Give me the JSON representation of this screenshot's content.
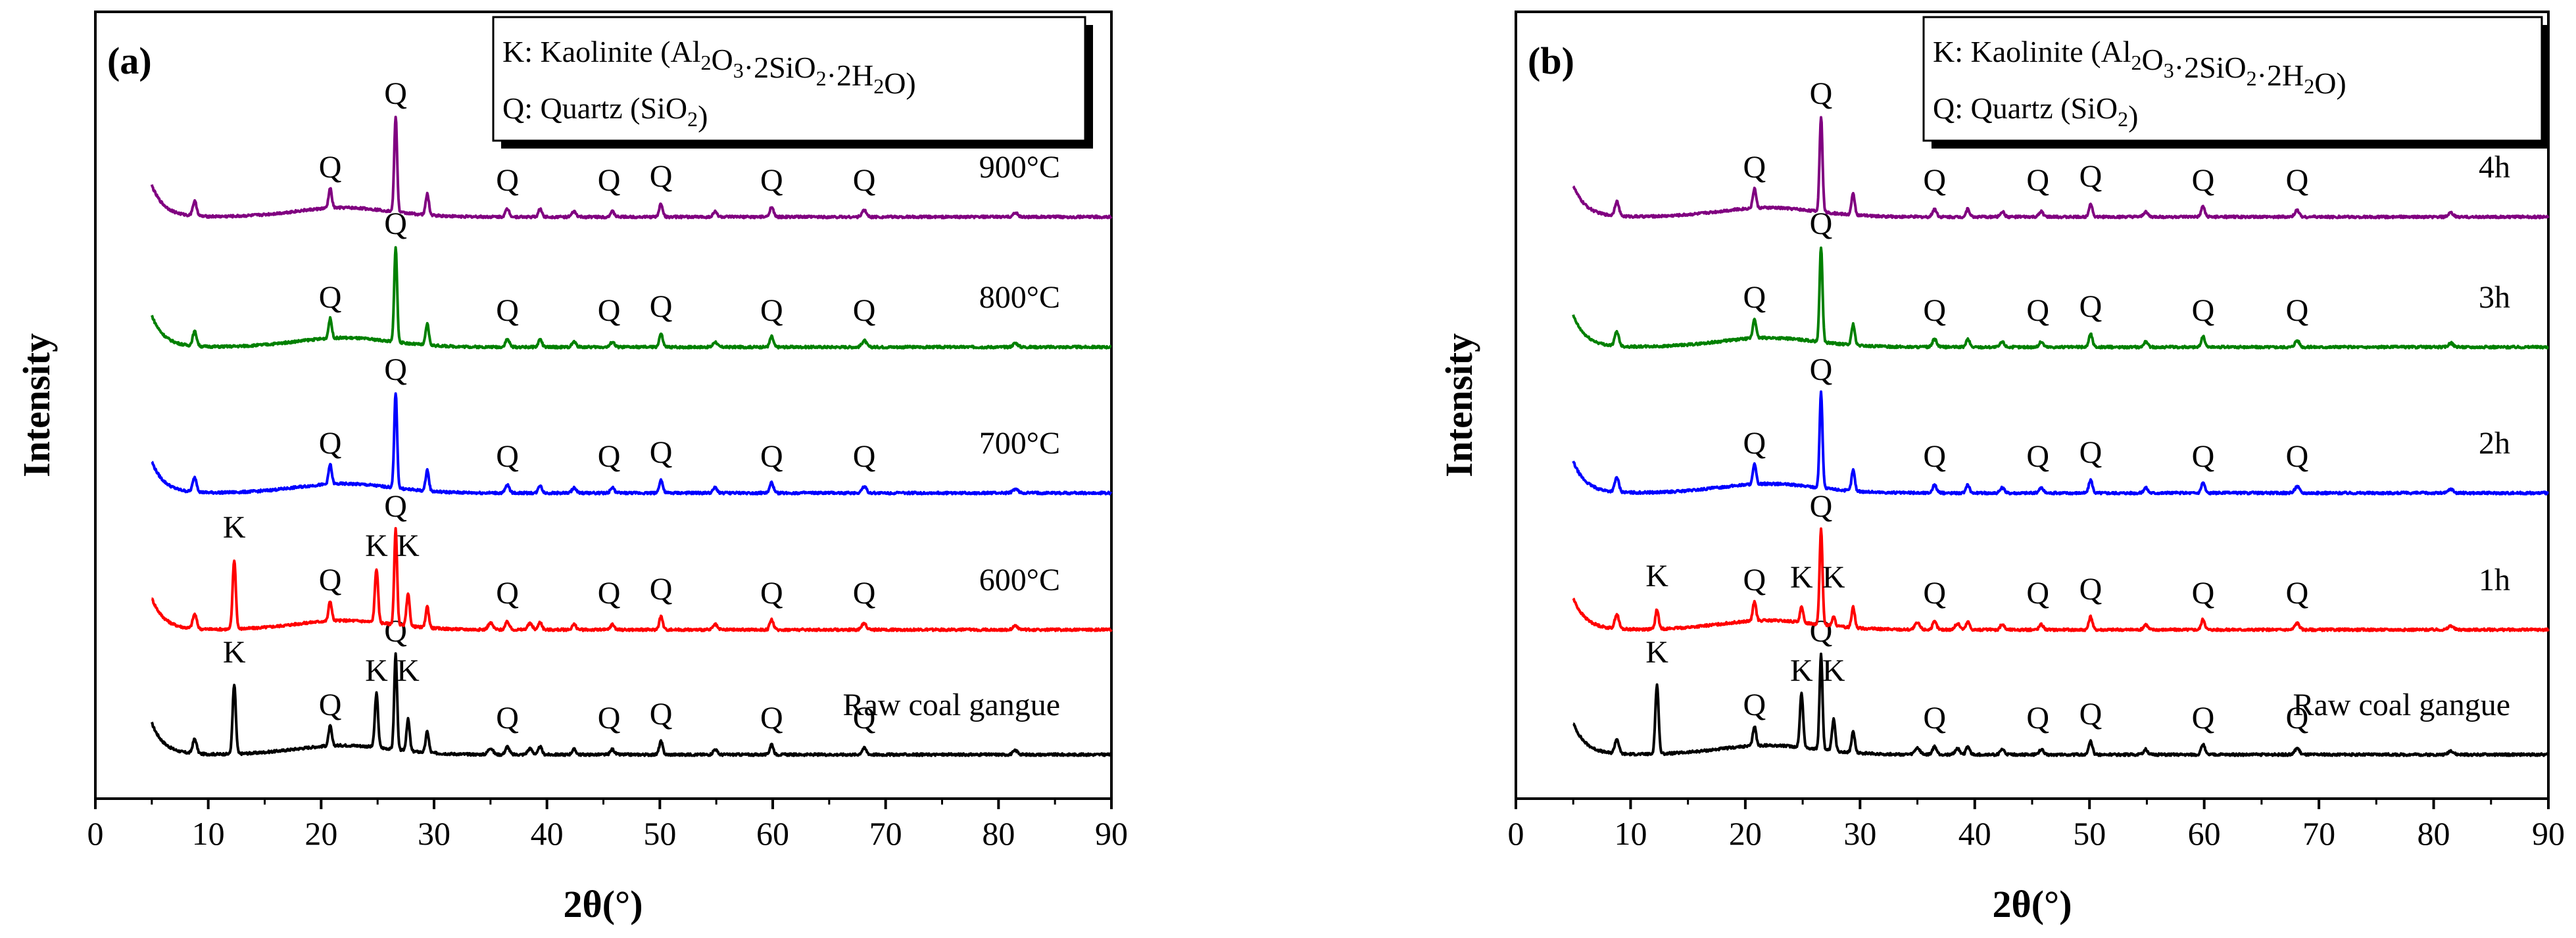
{
  "chart_data": [
    {
      "type": "line",
      "panel": "(a)",
      "xlabel": "2θ(°)",
      "ylabel": "Intensity",
      "xlim": [
        0,
        90
      ],
      "xticks": [
        0,
        10,
        20,
        30,
        40,
        50,
        60,
        70,
        80,
        90
      ],
      "legend": [
        {
          "prefix": "K: Kaolinite",
          "formula": [
            [
              "(Al",
              "n"
            ],
            [
              "2",
              "sub"
            ],
            [
              "O",
              "n"
            ],
            [
              "3",
              "sub"
            ],
            [
              "·2SiO",
              "n"
            ],
            [
              "2",
              "sub"
            ],
            [
              "·2H",
              "n"
            ],
            [
              "2",
              "sub"
            ],
            [
              "O)",
              "n"
            ]
          ]
        },
        {
          "prefix": "Q: Quartz",
          "formula": [
            [
              "(SiO",
              "n"
            ],
            [
              "2",
              "sub"
            ],
            [
              ")",
              "n"
            ]
          ]
        }
      ],
      "series": [
        {
          "name": "Raw coal gangue",
          "color": "#000000",
          "raw": true,
          "labels": [
            {
              "t": "K",
              "x": 12.3
            },
            {
              "t": "Q",
              "x": 20.8
            },
            {
              "t": "K",
              "x": 24.9
            },
            {
              "t": "Q",
              "x": 26.6
            },
            {
              "t": "K",
              "x": 27.7
            },
            {
              "t": "Q",
              "x": 36.5
            },
            {
              "t": "Q",
              "x": 45.5
            },
            {
              "t": "Q",
              "x": 50.1
            },
            {
              "t": "Q",
              "x": 59.9
            },
            {
              "t": "Q",
              "x": 68.1
            }
          ]
        },
        {
          "name": "600°C",
          "color": "#ff0000",
          "raw": true,
          "labels": [
            {
              "t": "K",
              "x": 12.3
            },
            {
              "t": "Q",
              "x": 20.8
            },
            {
              "t": "K",
              "x": 24.9
            },
            {
              "t": "Q",
              "x": 26.6
            },
            {
              "t": "K",
              "x": 27.7
            },
            {
              "t": "Q",
              "x": 36.5
            },
            {
              "t": "Q",
              "x": 45.5
            },
            {
              "t": "Q",
              "x": 50.1
            },
            {
              "t": "Q",
              "x": 59.9
            },
            {
              "t": "Q",
              "x": 68.1
            }
          ]
        },
        {
          "name": "700°C",
          "color": "#0000ff",
          "raw": false,
          "labels": [
            {
              "t": "Q",
              "x": 20.8
            },
            {
              "t": "Q",
              "x": 26.6
            },
            {
              "t": "Q",
              "x": 36.5
            },
            {
              "t": "Q",
              "x": 45.5
            },
            {
              "t": "Q",
              "x": 50.1
            },
            {
              "t": "Q",
              "x": 59.9
            },
            {
              "t": "Q",
              "x": 68.1
            }
          ]
        },
        {
          "name": "800°C",
          "color": "#008000",
          "raw": false,
          "labels": [
            {
              "t": "Q",
              "x": 20.8
            },
            {
              "t": "Q",
              "x": 26.6
            },
            {
              "t": "Q",
              "x": 36.5
            },
            {
              "t": "Q",
              "x": 45.5
            },
            {
              "t": "Q",
              "x": 50.1
            },
            {
              "t": "Q",
              "x": 59.9
            },
            {
              "t": "Q",
              "x": 68.1
            }
          ]
        },
        {
          "name": "900°C",
          "color": "#800080",
          "raw": false,
          "labels": [
            {
              "t": "Q",
              "x": 20.8
            },
            {
              "t": "Q",
              "x": 26.6
            },
            {
              "t": "Q",
              "x": 36.5
            },
            {
              "t": "Q",
              "x": 45.5
            },
            {
              "t": "Q",
              "x": 50.1
            },
            {
              "t": "Q",
              "x": 59.9
            },
            {
              "t": "Q",
              "x": 68.1
            }
          ]
        }
      ]
    },
    {
      "type": "line",
      "panel": "(b)",
      "xlabel": "2θ(°)",
      "ylabel": "Intensity",
      "xlim": [
        0,
        90
      ],
      "xticks": [
        0,
        10,
        20,
        30,
        40,
        50,
        60,
        70,
        80,
        90
      ],
      "legend": [
        {
          "prefix": "K: Kaolinite",
          "formula": [
            [
              "(Al",
              "n"
            ],
            [
              "2",
              "sub"
            ],
            [
              "O",
              "n"
            ],
            [
              "3",
              "sub"
            ],
            [
              "·2SiO",
              "n"
            ],
            [
              "2",
              "sub"
            ],
            [
              "·2H",
              "n"
            ],
            [
              "2",
              "sub"
            ],
            [
              "O)",
              "n"
            ]
          ]
        },
        {
          "prefix": "Q: Quartz",
          "formula": [
            [
              "(SiO",
              "n"
            ],
            [
              "2",
              "sub"
            ],
            [
              ")",
              "n"
            ]
          ]
        }
      ],
      "series": [
        {
          "name": "Raw coal gangue",
          "color": "#000000",
          "raw": true,
          "labels": [
            {
              "t": "K",
              "x": 12.3
            },
            {
              "t": "Q",
              "x": 20.8
            },
            {
              "t": "K",
              "x": 24.9
            },
            {
              "t": "Q",
              "x": 26.6
            },
            {
              "t": "K",
              "x": 27.7
            },
            {
              "t": "Q",
              "x": 36.5
            },
            {
              "t": "Q",
              "x": 45.5
            },
            {
              "t": "Q",
              "x": 50.1
            },
            {
              "t": "Q",
              "x": 59.9
            },
            {
              "t": "Q",
              "x": 68.1
            }
          ]
        },
        {
          "name": "1h",
          "color": "#ff0000",
          "raw": true,
          "weakK": true,
          "labels": [
            {
              "t": "K",
              "x": 12.3
            },
            {
              "t": "Q",
              "x": 20.8
            },
            {
              "t": "K",
              "x": 24.9
            },
            {
              "t": "Q",
              "x": 26.6
            },
            {
              "t": "K",
              "x": 27.7
            },
            {
              "t": "Q",
              "x": 36.5
            },
            {
              "t": "Q",
              "x": 45.5
            },
            {
              "t": "Q",
              "x": 50.1
            },
            {
              "t": "Q",
              "x": 59.9
            },
            {
              "t": "Q",
              "x": 68.1
            }
          ]
        },
        {
          "name": "2h",
          "color": "#0000ff",
          "raw": false,
          "labels": [
            {
              "t": "Q",
              "x": 20.8
            },
            {
              "t": "Q",
              "x": 26.6
            },
            {
              "t": "Q",
              "x": 36.5
            },
            {
              "t": "Q",
              "x": 45.5
            },
            {
              "t": "Q",
              "x": 50.1
            },
            {
              "t": "Q",
              "x": 59.9
            },
            {
              "t": "Q",
              "x": 68.1
            }
          ]
        },
        {
          "name": "3h",
          "color": "#008000",
          "raw": false,
          "labels": [
            {
              "t": "Q",
              "x": 20.8
            },
            {
              "t": "Q",
              "x": 26.6
            },
            {
              "t": "Q",
              "x": 36.5
            },
            {
              "t": "Q",
              "x": 45.5
            },
            {
              "t": "Q",
              "x": 50.1
            },
            {
              "t": "Q",
              "x": 59.9
            },
            {
              "t": "Q",
              "x": 68.1
            }
          ]
        },
        {
          "name": "4h",
          "color": "#800080",
          "raw": false,
          "labels": [
            {
              "t": "Q",
              "x": 20.8
            },
            {
              "t": "Q",
              "x": 26.6
            },
            {
              "t": "Q",
              "x": 36.5
            },
            {
              "t": "Q",
              "x": 45.5
            },
            {
              "t": "Q",
              "x": 50.1
            },
            {
              "t": "Q",
              "x": 59.9
            },
            {
              "t": "Q",
              "x": 68.1
            }
          ]
        }
      ]
    }
  ]
}
